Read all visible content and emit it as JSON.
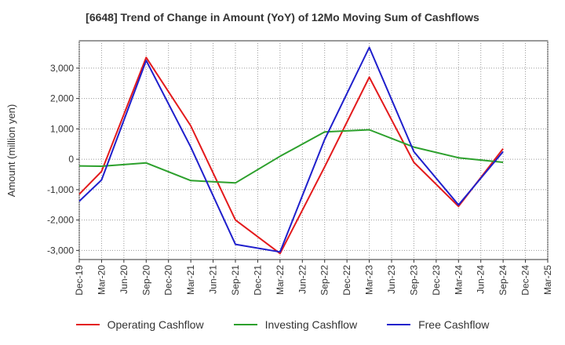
{
  "chart_data": {
    "type": "line",
    "title": "[6648]  Trend of Change in Amount (YoY) of 12Mo Moving Sum of Cashflows",
    "xlabel": "",
    "ylabel": "Amount (million yen)",
    "ylim": [
      -3300,
      3900
    ],
    "yticks": [
      -3000,
      -2000,
      -1000,
      0,
      1000,
      2000,
      3000
    ],
    "ytick_labels": [
      "-3,000",
      "-2,000",
      "-1,000",
      "0",
      "1,000",
      "2,000",
      "3,000"
    ],
    "categories": [
      "Dec-19",
      "Mar-20",
      "Jun-20",
      "Sep-20",
      "Dec-20",
      "Mar-21",
      "Jun-21",
      "Sep-21",
      "Dec-21",
      "Mar-22",
      "Jun-22",
      "Sep-22",
      "Dec-22",
      "Mar-23",
      "Jun-23",
      "Sep-23",
      "Dec-23",
      "Mar-24",
      "Jun-24",
      "Sep-24",
      "Dec-24",
      "Mar-25"
    ],
    "grid": true,
    "legend_position": "bottom",
    "series": [
      {
        "name": "Operating Cashflow",
        "color": "#e31a1c",
        "points": [
          [
            0,
            -1150
          ],
          [
            1,
            -400
          ],
          [
            3,
            3350
          ],
          [
            5,
            1100
          ],
          [
            7,
            -2000
          ],
          [
            9,
            -3100
          ],
          [
            11,
            -250
          ],
          [
            13,
            2700
          ],
          [
            15,
            -100
          ],
          [
            17,
            -1550
          ],
          [
            19,
            350
          ]
        ]
      },
      {
        "name": "Investing Cashflow",
        "color": "#2ca02c",
        "points": [
          [
            0,
            -220
          ],
          [
            1,
            -230
          ],
          [
            3,
            -120
          ],
          [
            5,
            -700
          ],
          [
            7,
            -780
          ],
          [
            9,
            100
          ],
          [
            11,
            900
          ],
          [
            13,
            970
          ],
          [
            15,
            400
          ],
          [
            17,
            50
          ],
          [
            19,
            -100
          ]
        ]
      },
      {
        "name": "Free Cashflow",
        "color": "#1f1fcc",
        "points": [
          [
            0,
            -1380
          ],
          [
            1,
            -680
          ],
          [
            3,
            3250
          ],
          [
            5,
            400
          ],
          [
            7,
            -2800
          ],
          [
            9,
            -3050
          ],
          [
            11,
            650
          ],
          [
            13,
            3680
          ],
          [
            15,
            250
          ],
          [
            17,
            -1500
          ],
          [
            19,
            250
          ]
        ]
      }
    ]
  }
}
